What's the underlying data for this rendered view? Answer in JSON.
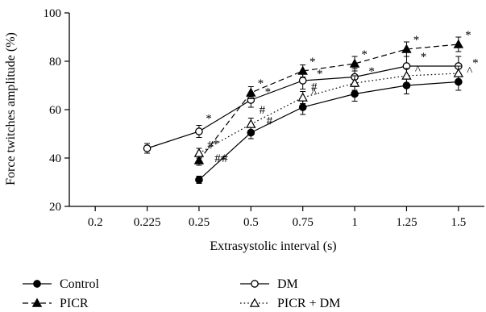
{
  "chart_data": {
    "type": "line",
    "xlabel": "Extrasystolic interval (s)",
    "ylabel": "Force twitches amplitude (%)",
    "categories": [
      "0.2",
      "0.225",
      "0.25",
      "0.5",
      "0.75",
      "1",
      "1.25",
      "1.5"
    ],
    "ylim": [
      20,
      100
    ],
    "yticks": [
      20,
      40,
      60,
      80,
      100
    ],
    "grid": false,
    "legend_position": "bottom",
    "series": [
      {
        "name": "Control",
        "line_style": "solid",
        "marker": "filled-circle",
        "values": [
          null,
          null,
          31,
          50.5,
          61,
          66.5,
          70,
          71.5
        ],
        "errors": [
          null,
          null,
          1.5,
          2.5,
          3,
          3,
          3.5,
          3.5
        ]
      },
      {
        "name": "DM",
        "line_style": "solid",
        "marker": "open-circle",
        "values": [
          null,
          44,
          51,
          64,
          72,
          73.5,
          78,
          78
        ],
        "errors": [
          null,
          2,
          2.5,
          3,
          3.5,
          3.5,
          4,
          4
        ]
      },
      {
        "name": "PICR",
        "line_style": "dashed",
        "marker": "filled-triangle",
        "values": [
          null,
          null,
          39,
          67,
          76,
          79,
          85,
          87
        ],
        "errors": [
          null,
          null,
          2,
          2.5,
          2.5,
          3,
          3,
          3
        ]
      },
      {
        "name": "PICR + DM",
        "line_style": "dotted",
        "marker": "open-triangle",
        "values": [
          null,
          null,
          42,
          54,
          65,
          71,
          74,
          75
        ],
        "errors": [
          null,
          null,
          2,
          2.5,
          2.5,
          3,
          3,
          3
        ]
      }
    ],
    "annotations": [
      {
        "text": "*",
        "category": "0.25",
        "y": 56.5
      },
      {
        "text": "*",
        "category": "0.25",
        "y": 46
      },
      {
        "text": "#",
        "category": "0.25",
        "y": 45.5
      },
      {
        "text": "*",
        "category": "0.25",
        "y": 39.5
      },
      {
        "text": "#",
        "category": "0.25",
        "y": 40
      },
      {
        "text": "#",
        "category": "0.25",
        "y": 40
      },
      {
        "text": "*",
        "category": "0.5",
        "y": 71
      },
      {
        "text": "*",
        "category": "0.5",
        "y": 67.5
      },
      {
        "text": "#",
        "category": "0.5",
        "y": 60
      },
      {
        "text": "#",
        "category": "0.5",
        "y": 55.5
      },
      {
        "text": "*",
        "category": "0.75",
        "y": 80
      },
      {
        "text": "*",
        "category": "0.75",
        "y": 75
      },
      {
        "text": "#",
        "category": "0.75",
        "y": 69.5
      },
      {
        "text": "^",
        "category": "0.75",
        "y": 67
      },
      {
        "text": "*",
        "category": "1",
        "y": 83
      },
      {
        "text": "*",
        "category": "1",
        "y": 76
      },
      {
        "text": "*",
        "category": "1.25",
        "y": 89
      },
      {
        "text": "*",
        "category": "1.25",
        "y": 82
      },
      {
        "text": "^",
        "category": "1.25",
        "y": 76.5
      },
      {
        "text": "*",
        "category": "1.5",
        "y": 91
      },
      {
        "text": "*",
        "category": "1.5",
        "y": 79.5
      },
      {
        "text": "^",
        "category": "1.5",
        "y": 76
      }
    ]
  },
  "legend": {
    "items": [
      {
        "label": "Control"
      },
      {
        "label": "DM"
      },
      {
        "label": "PICR"
      },
      {
        "label": "PICR + DM"
      }
    ]
  }
}
